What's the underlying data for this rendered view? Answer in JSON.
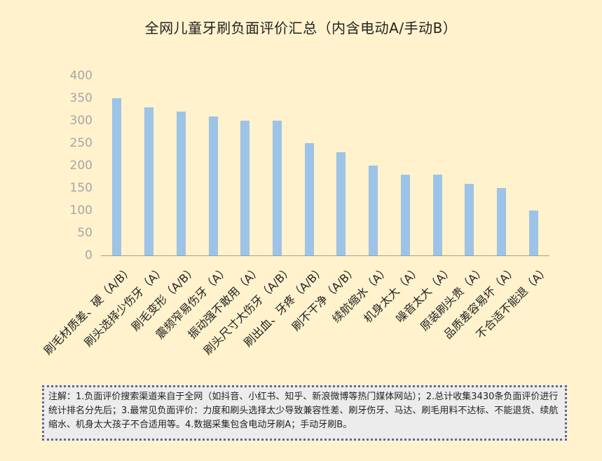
{
  "chart_data": {
    "type": "bar",
    "title": "全网儿童牙刷负面评价汇总（内含电动A/手动B）",
    "xlabel": "",
    "ylabel": "",
    "ylim": [
      0,
      400
    ],
    "yticks": [
      0,
      50,
      100,
      150,
      200,
      250,
      300,
      350,
      400
    ],
    "grid": false,
    "legend": null,
    "bar_color": "#9dc3e6",
    "categories": [
      "刷毛材质差、硬（A/B）",
      "刷头选择少伤牙（A）",
      "刷毛变形（A/B）",
      "震频窄易伤牙（A）",
      "振动强不敢用（A）",
      "刷头尺寸大伤牙（A/B）",
      "刷出血、牙疼（A/B）",
      "刷不干净（A/B）",
      "续航缩水（A）",
      "机身太大（A）",
      "噪音太大（A）",
      "原装刷头贵（A）",
      "品质差容易坏（A）",
      "不合适不能退（A）"
    ],
    "values": [
      350,
      330,
      320,
      310,
      300,
      300,
      250,
      230,
      200,
      180,
      180,
      160,
      150,
      100
    ]
  },
  "note": {
    "text": "注解：1.负面评价搜索渠道来自于全网（如抖音、小红书、知乎、新浪微博等热门媒体网站）；2.总计收集3430条负面评价进行统计排名分先后；3.最常见负面评价：力度和刷头选择太少导致兼容性差、刷牙伤牙、马达、刷毛用料不达标、不能退货、续航缩水、机身太大孩子不合适用等。4.数据采集包含电动牙刷A；手动牙刷B。"
  },
  "colors": {
    "background": "#fff2cc",
    "bar": "#9dc3e6",
    "axis": "#a89f8e",
    "tick_label": "#a6a6a6",
    "note_bg": "#ececec",
    "note_border": "#5c6a91"
  }
}
